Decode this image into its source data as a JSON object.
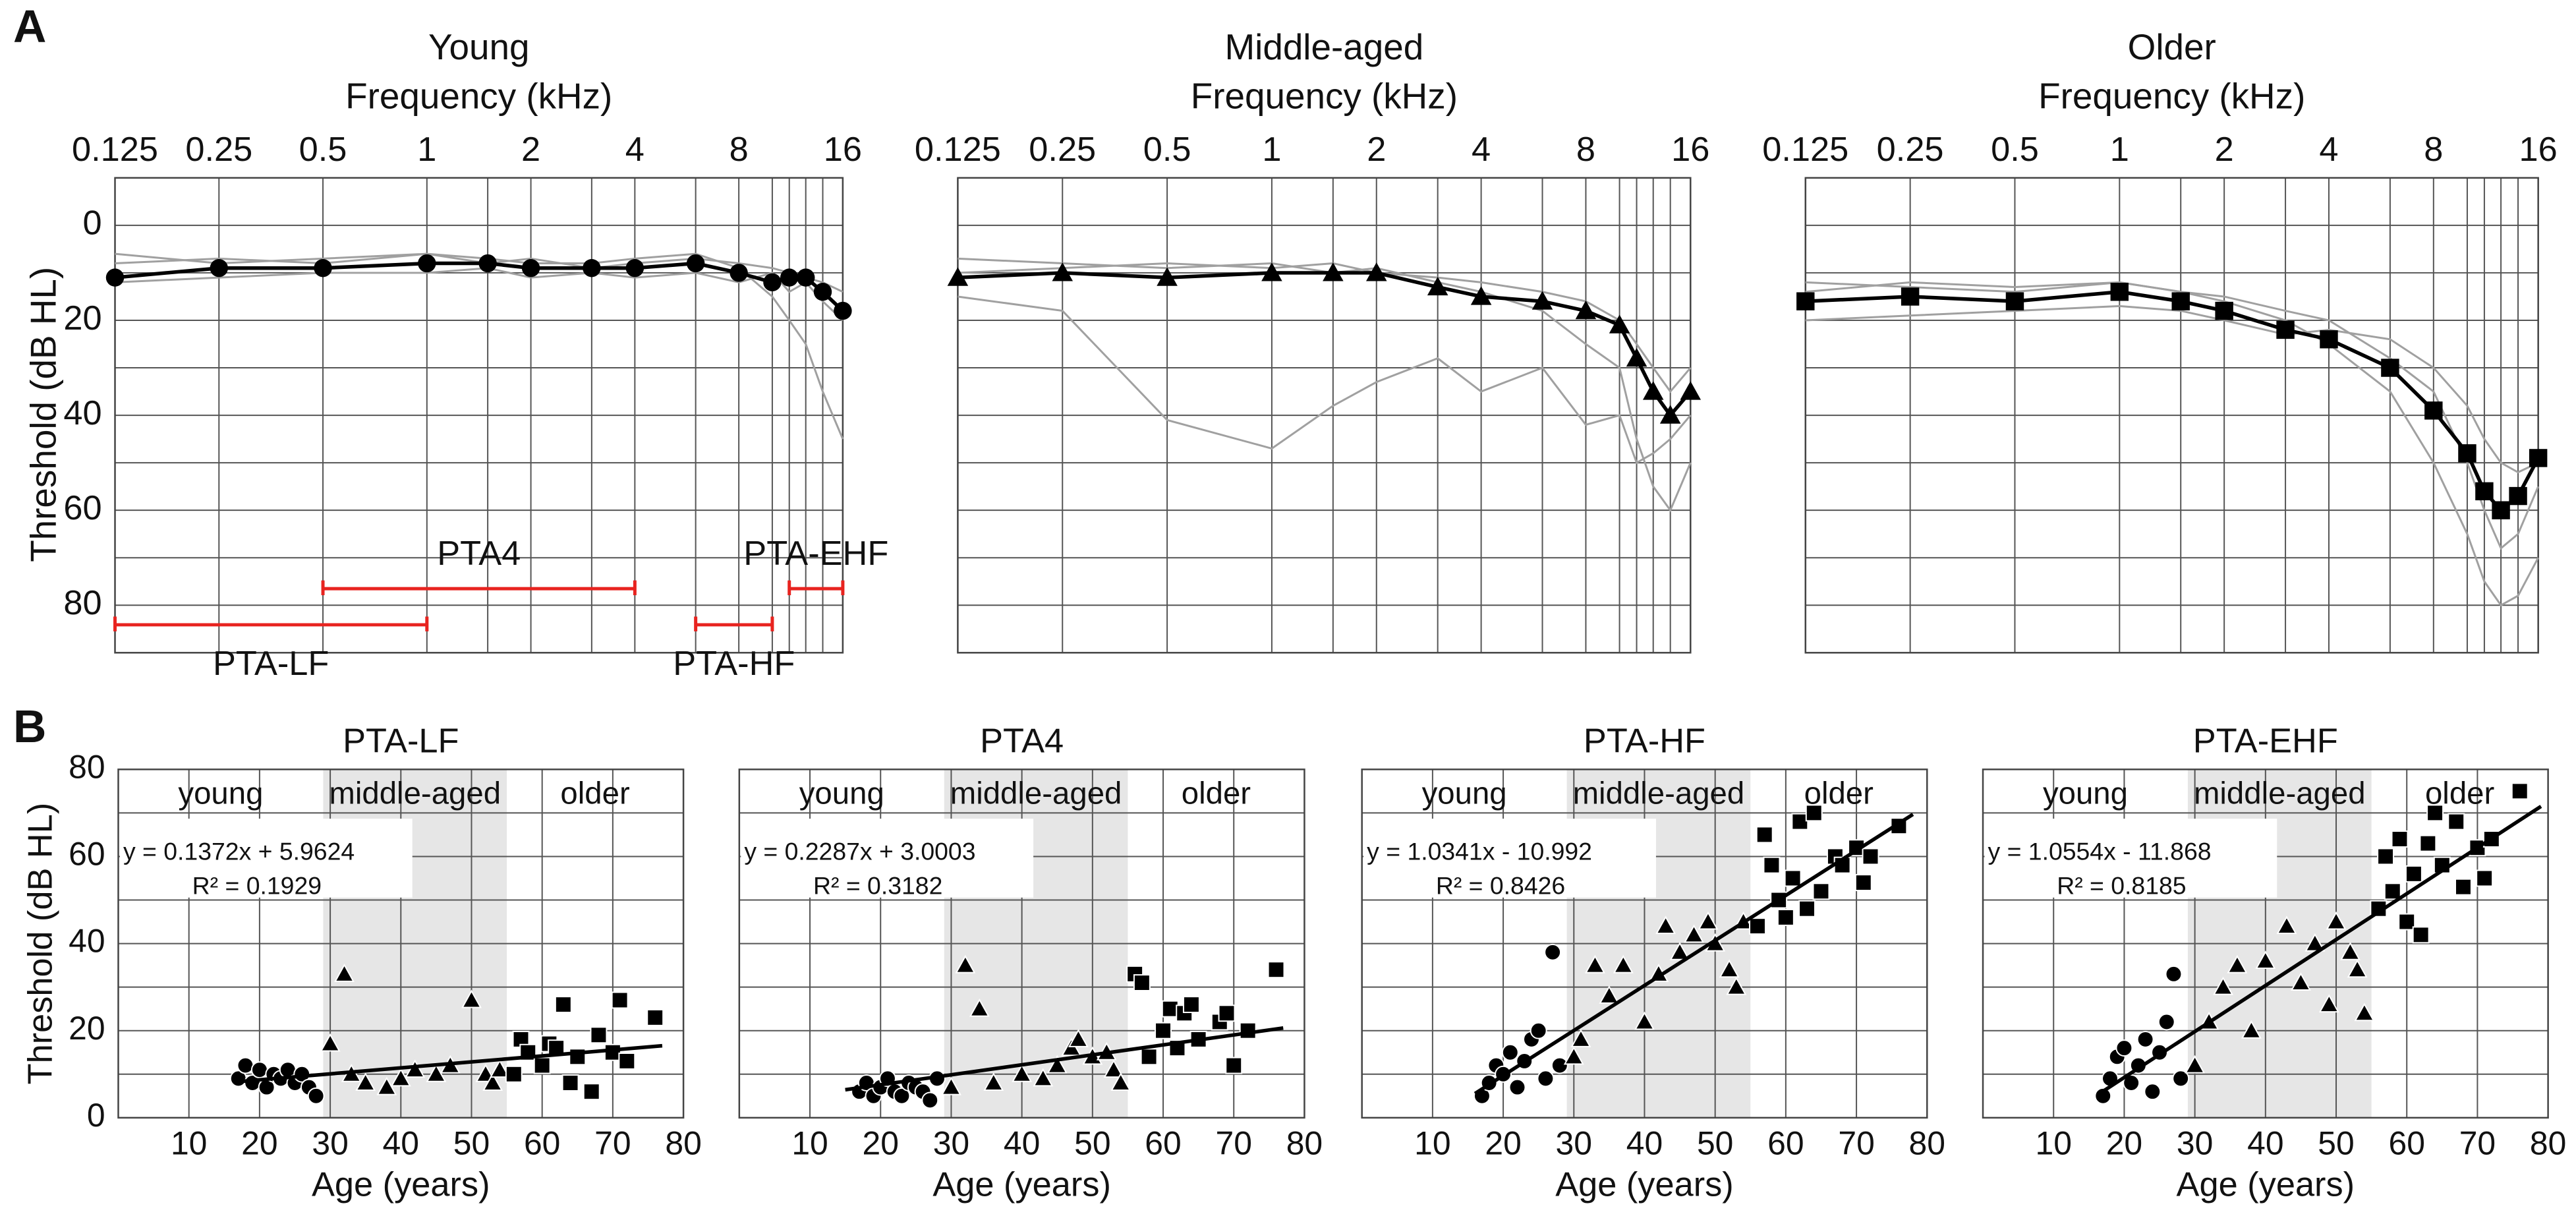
{
  "panel_labels": [
    "A",
    "B"
  ],
  "chart_data": [
    {
      "type": "line",
      "title": "Young",
      "xlabel": "Frequency (kHz)",
      "ylabel": "Threshold (dB HL)",
      "x": [
        0.125,
        0.25,
        0.5,
        1,
        1.5,
        2,
        3,
        4,
        6,
        8,
        10,
        11.2,
        12.5,
        14,
        16
      ],
      "xscale": "log",
      "xlim": [
        0.125,
        16
      ],
      "xticks": [
        0.125,
        0.25,
        0.5,
        1,
        2,
        4,
        8,
        16
      ],
      "xgrid": [
        0.125,
        0.25,
        0.5,
        1,
        1.5,
        2,
        3,
        4,
        6,
        8,
        10,
        11.2,
        12.5,
        14,
        16
      ],
      "ylim": [
        -10,
        90
      ],
      "y_inverted": true,
      "yticks": [
        0,
        20,
        40,
        60,
        80
      ],
      "ygrid": [
        0,
        10,
        20,
        30,
        40,
        50,
        60,
        70,
        80
      ],
      "series": [
        {
          "color": "#a0a0a0",
          "values": [
            8,
            7,
            8,
            6,
            7,
            8,
            8,
            7,
            6,
            9,
            15,
            20,
            25,
            35,
            45
          ]
        },
        {
          "color": "#a0a0a0",
          "values": [
            12,
            11,
            10,
            10,
            9,
            11,
            10,
            11,
            10,
            12,
            10,
            14,
            12,
            16,
            20
          ]
        },
        {
          "color": "#a0a0a0",
          "values": [
            6,
            8,
            7,
            6,
            8,
            7,
            9,
            8,
            7,
            8,
            9,
            10,
            11,
            12,
            14
          ]
        },
        {
          "color": "#000000",
          "marker": "circle",
          "values": [
            11,
            9,
            9,
            8,
            8,
            9,
            9,
            9,
            8,
            10,
            12,
            11,
            11,
            14,
            18
          ]
        }
      ],
      "annotation_color": "#e8231f",
      "annotations": [
        {
          "label": "PTA-LF",
          "range": [
            0.125,
            1
          ]
        },
        {
          "label": "PTA4",
          "range": [
            0.5,
            4
          ]
        },
        {
          "label": "PTA-HF",
          "range": [
            6,
            10
          ]
        },
        {
          "label": "PTA-EHF",
          "range": [
            11.2,
            16
          ]
        }
      ]
    },
    {
      "type": "line",
      "title": "Middle-aged",
      "xlabel": "Frequency (kHz)",
      "x": [
        0.125,
        0.25,
        0.5,
        1,
        1.5,
        2,
        3,
        4,
        6,
        8,
        10,
        11.2,
        12.5,
        14,
        16
      ],
      "xscale": "log",
      "xlim": [
        0.125,
        16
      ],
      "xticks": [
        0.125,
        0.25,
        0.5,
        1,
        2,
        4,
        8,
        16
      ],
      "xgrid": [
        0.125,
        0.25,
        0.5,
        1,
        1.5,
        2,
        3,
        4,
        6,
        8,
        10,
        11.2,
        12.5,
        14,
        16
      ],
      "ylim": [
        -10,
        90
      ],
      "y_inverted": true,
      "ygrid": [
        0,
        10,
        20,
        30,
        40,
        50,
        60,
        70,
        80
      ],
      "series": [
        {
          "color": "#a0a0a0",
          "values": [
            7,
            8,
            9,
            8,
            10,
            9,
            12,
            14,
            18,
            25,
            30,
            45,
            55,
            60,
            50
          ]
        },
        {
          "color": "#a0a0a0",
          "values": [
            15,
            18,
            41,
            47,
            38,
            33,
            28,
            35,
            30,
            42,
            40,
            50,
            48,
            45,
            40
          ]
        },
        {
          "color": "#a0a0a0",
          "values": [
            10,
            9,
            8,
            9,
            8,
            10,
            11,
            12,
            14,
            16,
            20,
            25,
            30,
            35,
            30
          ]
        },
        {
          "color": "#000000",
          "marker": "triangle",
          "values": [
            11,
            10,
            11,
            10,
            10,
            10,
            13,
            15,
            16,
            18,
            21,
            28,
            35,
            40,
            35
          ]
        }
      ]
    },
    {
      "type": "line",
      "title": "Older",
      "xlabel": "Frequency (kHz)",
      "x": [
        0.125,
        0.25,
        0.5,
        1,
        1.5,
        2,
        3,
        4,
        6,
        8,
        10,
        11.2,
        12.5,
        14,
        16
      ],
      "xscale": "log",
      "xlim": [
        0.125,
        16
      ],
      "xticks": [
        0.125,
        0.25,
        0.5,
        1,
        2,
        4,
        8,
        16
      ],
      "xgrid": [
        0.125,
        0.25,
        0.5,
        1,
        1.5,
        2,
        3,
        4,
        6,
        8,
        10,
        11.2,
        12.5,
        14,
        16
      ],
      "ylim": [
        -10,
        90
      ],
      "y_inverted": true,
      "ygrid": [
        0,
        10,
        20,
        30,
        40,
        50,
        60,
        70,
        80
      ],
      "series": [
        {
          "color": "#a0a0a0",
          "values": [
            12,
            13,
            14,
            12,
            14,
            16,
            20,
            25,
            35,
            50,
            65,
            75,
            80,
            78,
            70
          ]
        },
        {
          "color": "#a0a0a0",
          "values": [
            20,
            19,
            18,
            17,
            18,
            20,
            23,
            22,
            24,
            30,
            38,
            45,
            50,
            52,
            50
          ]
        },
        {
          "color": "#a0a0a0",
          "values": [
            14,
            12,
            13,
            12,
            14,
            15,
            18,
            20,
            28,
            35,
            50,
            60,
            68,
            65,
            55
          ]
        },
        {
          "color": "#000000",
          "marker": "square",
          "values": [
            16,
            15,
            16,
            14,
            16,
            18,
            22,
            24,
            30,
            39,
            48,
            56,
            60,
            57,
            49
          ]
        }
      ]
    },
    {
      "type": "scatter",
      "title": "PTA-LF",
      "xlabel": "Age (years)",
      "ylabel": "Threshold (dB HL)",
      "xlim": [
        0,
        80
      ],
      "xticks": [
        10,
        20,
        30,
        40,
        50,
        60,
        70,
        80
      ],
      "xgrid": [
        10,
        20,
        30,
        40,
        50,
        60,
        70
      ],
      "ylim": [
        0,
        80
      ],
      "yticks": [
        0,
        20,
        40,
        60,
        80
      ],
      "ygrid": [
        10,
        20,
        30,
        40,
        50,
        60,
        70
      ],
      "shaded_range": [
        29,
        55
      ],
      "shade_color": "#e6e6e6",
      "group_labels": [
        "young",
        "middle-aged",
        "older"
      ],
      "series": [
        {
          "marker": "circle",
          "color": "#000000",
          "x": [
            17,
            18,
            19,
            20,
            21,
            22,
            23,
            24,
            25,
            26,
            27,
            28
          ],
          "values": [
            9,
            12,
            8,
            11,
            7,
            10,
            9,
            11,
            8,
            10,
            7,
            5
          ]
        },
        {
          "marker": "triangle",
          "color": "#000000",
          "x": [
            30,
            32,
            33,
            35,
            38,
            40,
            42,
            45,
            47,
            50,
            52,
            53,
            54
          ],
          "values": [
            17,
            33,
            10,
            8,
            7,
            9,
            11,
            10,
            12,
            27,
            10,
            8,
            11
          ]
        },
        {
          "marker": "square",
          "color": "#000000",
          "x": [
            56,
            57,
            58,
            60,
            61,
            62,
            63,
            64,
            65,
            67,
            68,
            70,
            71,
            72,
            76
          ],
          "values": [
            10,
            18,
            15,
            12,
            17,
            16,
            26,
            8,
            14,
            6,
            19,
            15,
            27,
            13,
            23
          ]
        }
      ],
      "fit": {
        "equation": "y = 0.1372x + 5.9624",
        "r2": "R² = 0.1929",
        "slope": 0.1372,
        "intercept": 5.9624,
        "x": [
          17,
          77
        ]
      }
    },
    {
      "type": "scatter",
      "title": "PTA4",
      "xlabel": "Age (years)",
      "xlim": [
        0,
        80
      ],
      "xticks": [
        10,
        20,
        30,
        40,
        50,
        60,
        70,
        80
      ],
      "xgrid": [
        10,
        20,
        30,
        40,
        50,
        60,
        70
      ],
      "ylim": [
        0,
        80
      ],
      "ygrid": [
        10,
        20,
        30,
        40,
        50,
        60,
        70
      ],
      "shaded_range": [
        29,
        55
      ],
      "shade_color": "#e6e6e6",
      "group_labels": [
        "young",
        "middle-aged",
        "older"
      ],
      "series": [
        {
          "marker": "circle",
          "color": "#000000",
          "x": [
            17,
            18,
            19,
            20,
            21,
            22,
            23,
            24,
            25,
            26,
            27,
            28
          ],
          "values": [
            6,
            8,
            5,
            7,
            9,
            6,
            5,
            8,
            7,
            6,
            4,
            9
          ]
        },
        {
          "marker": "triangle",
          "color": "#000000",
          "x": [
            30,
            32,
            34,
            36,
            40,
            43,
            45,
            47,
            48,
            50,
            52,
            53,
            54
          ],
          "values": [
            7,
            35,
            25,
            8,
            10,
            9,
            12,
            16,
            18,
            14,
            15,
            11,
            8
          ]
        },
        {
          "marker": "square",
          "color": "#000000",
          "x": [
            56,
            57,
            58,
            60,
            61,
            62,
            63,
            64,
            65,
            68,
            69,
            70,
            72,
            76
          ],
          "values": [
            33,
            31,
            14,
            20,
            25,
            16,
            24,
            26,
            18,
            22,
            24,
            12,
            20,
            34
          ]
        }
      ],
      "fit": {
        "equation": "y = 0.2287x + 3.0003",
        "r2": "R² = 0.3182",
        "slope": 0.2287,
        "intercept": 3.0003,
        "x": [
          15,
          77
        ]
      }
    },
    {
      "type": "scatter",
      "title": "PTA-HF",
      "xlabel": "Age (years)",
      "xlim": [
        0,
        80
      ],
      "xticks": [
        10,
        20,
        30,
        40,
        50,
        60,
        70,
        80
      ],
      "xgrid": [
        10,
        20,
        30,
        40,
        50,
        60,
        70
      ],
      "ylim": [
        0,
        80
      ],
      "ygrid": [
        10,
        20,
        30,
        40,
        50,
        60,
        70
      ],
      "shaded_range": [
        29,
        55
      ],
      "shade_color": "#e6e6e6",
      "group_labels": [
        "young",
        "middle-aged",
        "older"
      ],
      "series": [
        {
          "marker": "circle",
          "color": "#000000",
          "x": [
            17,
            18,
            19,
            20,
            21,
            22,
            23,
            24,
            25,
            26,
            27,
            28
          ],
          "values": [
            5,
            8,
            12,
            10,
            15,
            7,
            13,
            18,
            20,
            9,
            38,
            12
          ]
        },
        {
          "marker": "triangle",
          "color": "#000000",
          "x": [
            30,
            31,
            33,
            35,
            37,
            40,
            42,
            43,
            45,
            47,
            49,
            50,
            52,
            53,
            54
          ],
          "values": [
            14,
            18,
            35,
            28,
            35,
            22,
            33,
            44,
            38,
            42,
            45,
            40,
            34,
            30,
            45
          ]
        },
        {
          "marker": "square",
          "color": "#000000",
          "x": [
            56,
            57,
            58,
            59,
            60,
            61,
            62,
            63,
            64,
            65,
            67,
            68,
            70,
            71,
            72,
            76
          ],
          "values": [
            44,
            65,
            58,
            50,
            46,
            55,
            68,
            48,
            70,
            52,
            60,
            58,
            62,
            54,
            60,
            67
          ]
        }
      ],
      "fit": {
        "equation": "y = 1.0341x - 10.992",
        "r2": "R² = 0.8426",
        "slope": 1.0341,
        "intercept": -10.992,
        "x": [
          16,
          78
        ]
      }
    },
    {
      "type": "scatter",
      "title": "PTA-EHF",
      "xlabel": "Age (years)",
      "xlim": [
        0,
        80
      ],
      "xticks": [
        10,
        20,
        30,
        40,
        50,
        60,
        70,
        80
      ],
      "xgrid": [
        10,
        20,
        30,
        40,
        50,
        60,
        70
      ],
      "ylim": [
        0,
        80
      ],
      "ygrid": [
        10,
        20,
        30,
        40,
        50,
        60,
        70
      ],
      "shaded_range": [
        29,
        55
      ],
      "shade_color": "#e6e6e6",
      "group_labels": [
        "young",
        "middle-aged",
        "older"
      ],
      "series": [
        {
          "marker": "circle",
          "color": "#000000",
          "x": [
            17,
            18,
            19,
            20,
            21,
            22,
            23,
            24,
            25,
            26,
            27,
            28
          ],
          "values": [
            5,
            9,
            14,
            16,
            8,
            12,
            18,
            6,
            15,
            22,
            33,
            9
          ]
        },
        {
          "marker": "triangle",
          "color": "#000000",
          "x": [
            30,
            32,
            34,
            36,
            38,
            40,
            43,
            45,
            47,
            49,
            50,
            52,
            53,
            54
          ],
          "values": [
            12,
            22,
            30,
            35,
            20,
            36,
            44,
            31,
            40,
            26,
            45,
            38,
            34,
            24
          ]
        },
        {
          "marker": "square",
          "color": "#000000",
          "x": [
            56,
            57,
            58,
            59,
            60,
            61,
            62,
            63,
            64,
            65,
            67,
            68,
            70,
            71,
            72,
            76
          ],
          "values": [
            48,
            60,
            52,
            64,
            45,
            56,
            42,
            63,
            70,
            58,
            68,
            53,
            62,
            55,
            64,
            75
          ]
        }
      ],
      "fit": {
        "equation": "y = 1.0554x - 11.868",
        "r2": "R² = 0.8185",
        "slope": 1.0554,
        "intercept": -11.868,
        "x": [
          17,
          79
        ]
      }
    }
  ]
}
